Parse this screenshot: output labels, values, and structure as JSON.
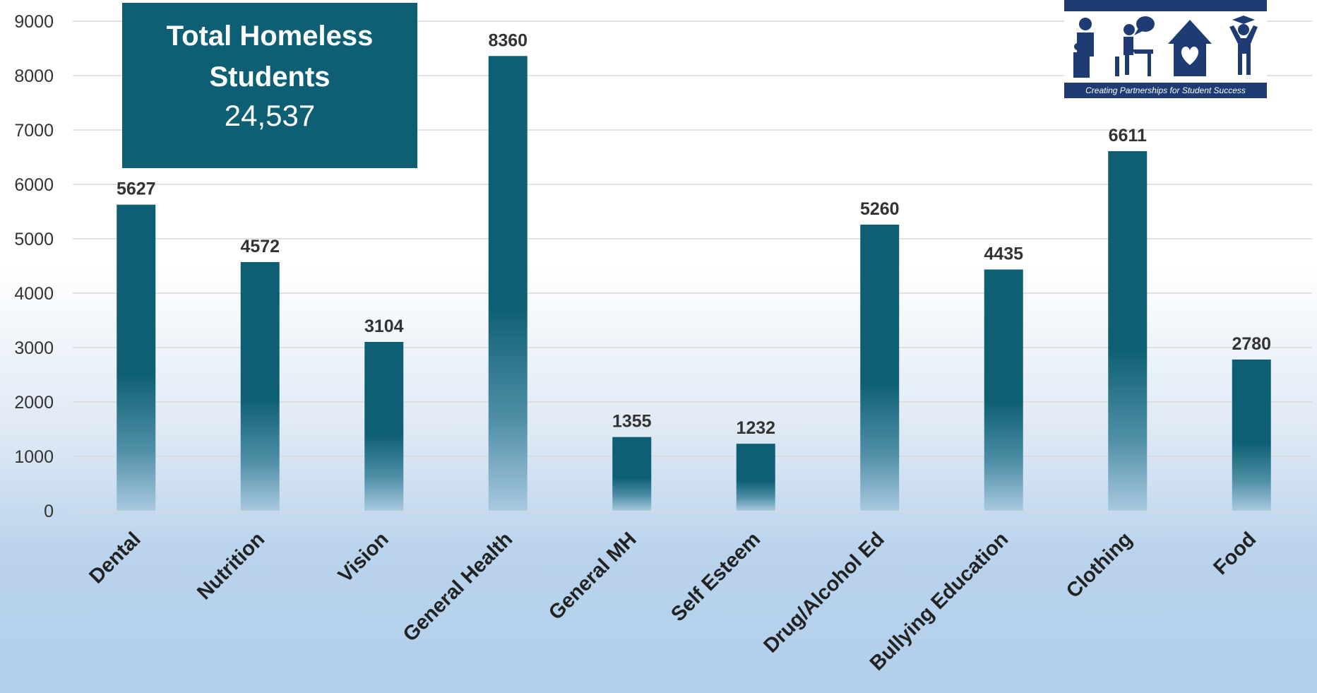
{
  "chart_data": {
    "type": "bar",
    "categories": [
      "Dental",
      "Nutrition",
      "Vision",
      "General Health",
      "General MH",
      "Self Esteem",
      "Drug/Alcohol Ed",
      "Bullying Education",
      "Clothing",
      "Food"
    ],
    "values": [
      5627,
      4572,
      3104,
      8360,
      1355,
      1232,
      5260,
      4435,
      6611,
      2780
    ],
    "ylim": [
      0,
      9000
    ],
    "yticks": [
      0,
      1000,
      2000,
      3000,
      4000,
      5000,
      6000,
      7000,
      8000,
      9000
    ],
    "grid": true,
    "bar_color": "#0e5f73",
    "data_labels": true
  },
  "summary_box": {
    "title": "Total Homeless\nStudents",
    "value": "24,537"
  },
  "logo": {
    "tagline": "Creating Partnerships for Student Success",
    "icons": [
      "family-icon",
      "student-at-desk-icon",
      "home-heart-icon",
      "graduate-icon"
    ]
  }
}
